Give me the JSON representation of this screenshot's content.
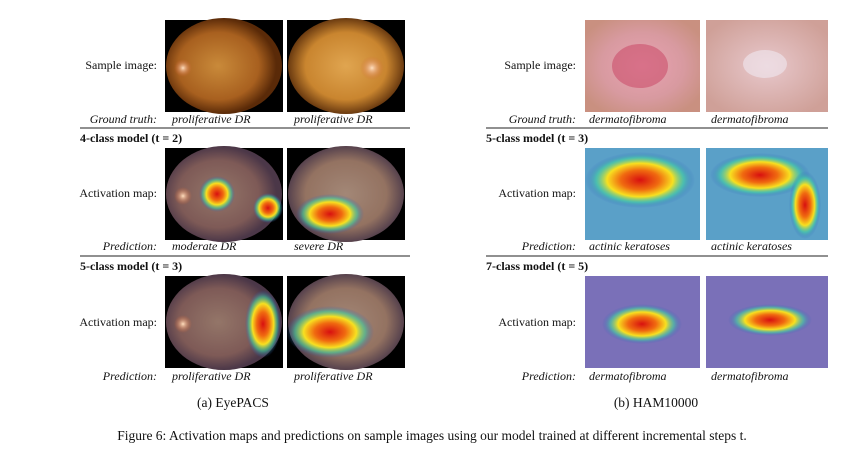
{
  "panels": [
    {
      "subcaption": "(a) EyePACS",
      "sample_label": "Sample image:",
      "truth_label": "Ground truth:",
      "truths": [
        "proliferative DR",
        "proliferative DR"
      ],
      "steps": [
        {
          "header": "4-class model (t = 2)",
          "map_label": "Activation map:",
          "prediction_label": "Prediction:",
          "predictions": [
            "moderate DR",
            "severe DR"
          ]
        },
        {
          "header": "5-class model (t = 3)",
          "map_label": "Activation map:",
          "prediction_label": "Prediction:",
          "predictions": [
            "proliferative DR",
            "proliferative DR"
          ]
        }
      ]
    },
    {
      "subcaption": "(b) HAM10000",
      "sample_label": "Sample image:",
      "truth_label": "Ground truth:",
      "truths": [
        "dermatofibroma",
        "dermatofibroma"
      ],
      "steps": [
        {
          "header": "5-class model (t = 3)",
          "map_label": "Activation map:",
          "prediction_label": "Prediction:",
          "predictions": [
            "actinic keratoses",
            "actinic keratoses"
          ]
        },
        {
          "header": "7-class model (t = 5)",
          "map_label": "Activation map:",
          "prediction_label": "Prediction:",
          "predictions": [
            "dermatofibroma",
            "dermatofibroma"
          ]
        }
      ]
    }
  ],
  "caption": "Figure 6: Activation maps and predictions on sample images using our model trained at different incremental steps t."
}
